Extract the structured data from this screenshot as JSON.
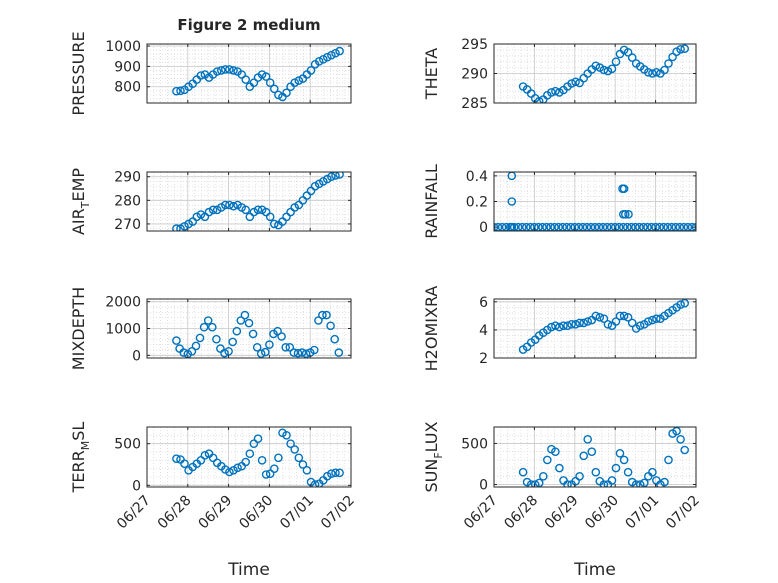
{
  "chart_data": [
    {
      "type": "scatter",
      "title": "Figure 2 medium",
      "ylabel": "PRESSURE",
      "ylim": [
        720,
        1010
      ],
      "yticks": [
        800,
        900,
        1000
      ],
      "xlim": [
        "06/27",
        "07/02"
      ],
      "xticks": [
        "06/27",
        "06/28",
        "06/29",
        "06/30",
        "07/01",
        "07/02"
      ],
      "xtick_labels_shown": false,
      "grid": true,
      "x": [
        0.72,
        0.82,
        0.92,
        1.02,
        1.12,
        1.22,
        1.32,
        1.42,
        1.52,
        1.62,
        1.72,
        1.82,
        1.92,
        2.02,
        2.12,
        2.22,
        2.32,
        2.42,
        2.52,
        2.62,
        2.72,
        2.82,
        2.92,
        3.02,
        3.12,
        3.22,
        3.32,
        3.42,
        3.52,
        3.62,
        3.72,
        3.82,
        3.92,
        4.02,
        4.12,
        4.22,
        4.32,
        4.42,
        4.52,
        4.62,
        4.72
      ],
      "y": [
        778,
        780,
        785,
        800,
        815,
        835,
        855,
        860,
        845,
        860,
        875,
        880,
        885,
        885,
        880,
        875,
        860,
        835,
        800,
        820,
        845,
        860,
        850,
        820,
        790,
        760,
        750,
        770,
        800,
        820,
        830,
        840,
        860,
        880,
        910,
        925,
        935,
        945,
        955,
        965,
        975
      ]
    },
    {
      "type": "scatter",
      "title": "",
      "ylabel": "THETA",
      "ylim": [
        285,
        295
      ],
      "yticks": [
        285,
        290,
        295
      ],
      "xlim": [
        "06/27",
        "07/02"
      ],
      "xticks": [
        "06/27",
        "06/28",
        "06/29",
        "06/30",
        "07/01",
        "07/02"
      ],
      "xtick_labels_shown": false,
      "grid": true,
      "x": [
        0.72,
        0.82,
        0.92,
        1.02,
        1.12,
        1.22,
        1.32,
        1.42,
        1.52,
        1.62,
        1.72,
        1.82,
        1.92,
        2.02,
        2.12,
        2.22,
        2.32,
        2.42,
        2.52,
        2.62,
        2.72,
        2.82,
        2.92,
        3.02,
        3.12,
        3.22,
        3.32,
        3.42,
        3.52,
        3.62,
        3.72,
        3.82,
        3.92,
        4.02,
        4.12,
        4.22,
        4.32,
        4.42,
        4.52,
        4.62,
        4.72
      ],
      "y": [
        287.8,
        287.3,
        286.6,
        285.8,
        285.3,
        285.6,
        286.3,
        286.8,
        287.0,
        286.8,
        287.2,
        287.8,
        288.3,
        288.6,
        288.4,
        289.2,
        290.0,
        290.7,
        291.3,
        291.0,
        290.6,
        290.4,
        290.8,
        292.0,
        293.3,
        294.0,
        293.6,
        292.7,
        291.7,
        291.2,
        290.7,
        290.2,
        290.0,
        290.2,
        290.0,
        290.6,
        291.7,
        292.8,
        293.7,
        294.1,
        294.2
      ]
    },
    {
      "type": "scatter",
      "title": "",
      "ylabel": "AIR_TEMP",
      "ylim": [
        267,
        292
      ],
      "yticks": [
        270,
        280,
        290
      ],
      "xlim": [
        "06/27",
        "07/02"
      ],
      "xticks": [
        "06/27",
        "06/28",
        "06/29",
        "06/30",
        "07/01",
        "07/02"
      ],
      "xtick_labels_shown": false,
      "grid": true,
      "x": [
        0.72,
        0.82,
        0.92,
        1.02,
        1.12,
        1.22,
        1.32,
        1.42,
        1.52,
        1.62,
        1.72,
        1.82,
        1.92,
        2.02,
        2.12,
        2.22,
        2.32,
        2.42,
        2.52,
        2.62,
        2.72,
        2.82,
        2.92,
        3.02,
        3.12,
        3.22,
        3.32,
        3.42,
        3.52,
        3.62,
        3.72,
        3.82,
        3.92,
        4.02,
        4.12,
        4.22,
        4.32,
        4.42,
        4.52,
        4.62,
        4.72
      ],
      "y": [
        268,
        268,
        269,
        270,
        271,
        273,
        274,
        273,
        275,
        276,
        276,
        277,
        278,
        278,
        277.5,
        278,
        277,
        276,
        273,
        275,
        276,
        276,
        275,
        273,
        270,
        269.5,
        271,
        273,
        275,
        277,
        278,
        280,
        282,
        284,
        286,
        287,
        288,
        289,
        290,
        290.5,
        291
      ]
    },
    {
      "type": "scatter",
      "title": "",
      "ylabel": "RAINFALL",
      "ylim": [
        -0.03,
        0.43
      ],
      "yticks": [
        0,
        0.2,
        0.4
      ],
      "xlim": [
        "06/27",
        "07/02"
      ],
      "xticks": [
        "06/27",
        "06/28",
        "06/29",
        "06/30",
        "07/01",
        "07/02"
      ],
      "xtick_labels_shown": false,
      "grid": true,
      "x": [
        0.0,
        0.1,
        0.2,
        0.3,
        0.4,
        0.5,
        0.6,
        0.7,
        0.8,
        0.9,
        1.0,
        1.1,
        1.2,
        1.3,
        1.4,
        1.5,
        1.6,
        1.7,
        1.8,
        1.9,
        2.0,
        2.1,
        2.2,
        2.3,
        2.4,
        2.5,
        2.6,
        2.7,
        2.8,
        2.9,
        3.0,
        3.1,
        3.2,
        3.3,
        3.4,
        3.5,
        3.6,
        3.7,
        3.8,
        3.9,
        4.0,
        4.1,
        4.2,
        4.3,
        4.4,
        4.5,
        4.6,
        4.7,
        4.8,
        4.9,
        5.0,
        0.44,
        0.44,
        0.44,
        3.18,
        3.22,
        3.25,
        3.2,
        3.33
      ],
      "y": [
        0,
        0,
        0,
        0,
        0,
        0,
        0,
        0,
        0,
        0,
        0,
        0,
        0,
        0,
        0,
        0,
        0,
        0,
        0,
        0,
        0,
        0,
        0,
        0,
        0,
        0,
        0,
        0,
        0,
        0,
        0,
        0,
        0,
        0,
        0,
        0,
        0,
        0,
        0,
        0,
        0,
        0,
        0,
        0,
        0,
        0,
        0,
        0,
        0,
        0,
        0,
        0.4,
        0.2,
        0,
        0.3,
        0.3,
        0.1,
        0.1,
        0.1
      ]
    },
    {
      "type": "scatter",
      "title": "",
      "ylabel": "MIXDEPTH",
      "ylim": [
        -100,
        2100
      ],
      "yticks": [
        0,
        1000,
        2000
      ],
      "xlim": [
        "06/27",
        "07/02"
      ],
      "xticks": [
        "06/27",
        "06/28",
        "06/29",
        "06/30",
        "07/01",
        "07/02"
      ],
      "xtick_labels_shown": false,
      "grid": true,
      "x": [
        0.72,
        0.8,
        0.9,
        1.0,
        1.1,
        1.2,
        1.3,
        1.4,
        1.5,
        1.6,
        1.7,
        1.8,
        1.9,
        2.0,
        2.1,
        2.2,
        2.3,
        2.4,
        2.5,
        2.6,
        2.7,
        2.8,
        2.9,
        3.0,
        3.1,
        3.2,
        3.3,
        3.4,
        3.5,
        3.6,
        3.7,
        3.8,
        3.9,
        4.0,
        4.1,
        4.2,
        4.3,
        4.4,
        4.5,
        4.6,
        4.7
      ],
      "y": [
        550,
        250,
        100,
        50,
        150,
        350,
        650,
        1050,
        1300,
        1050,
        600,
        250,
        80,
        150,
        500,
        900,
        1300,
        1500,
        1200,
        800,
        300,
        60,
        120,
        400,
        800,
        900,
        700,
        300,
        300,
        100,
        80,
        100,
        60,
        100,
        200,
        1300,
        1500,
        1500,
        1100,
        600,
        100
      ]
    },
    {
      "type": "scatter",
      "title": "",
      "ylabel": "H2OMIXRA",
      "ylim": [
        2,
        6.2
      ],
      "yticks": [
        2,
        4,
        6
      ],
      "xlim": [
        "06/27",
        "07/02"
      ],
      "xticks": [
        "06/27",
        "06/28",
        "06/29",
        "06/30",
        "07/01",
        "07/02"
      ],
      "xtick_labels_shown": false,
      "grid": true,
      "x": [
        0.72,
        0.82,
        0.92,
        1.02,
        1.12,
        1.22,
        1.32,
        1.42,
        1.52,
        1.62,
        1.72,
        1.82,
        1.92,
        2.02,
        2.12,
        2.22,
        2.32,
        2.42,
        2.52,
        2.62,
        2.72,
        2.82,
        2.92,
        3.02,
        3.12,
        3.22,
        3.32,
        3.42,
        3.52,
        3.62,
        3.72,
        3.82,
        3.92,
        4.02,
        4.12,
        4.22,
        4.32,
        4.42,
        4.52,
        4.62,
        4.72
      ],
      "y": [
        2.6,
        2.8,
        3.1,
        3.3,
        3.6,
        3.8,
        4.0,
        4.2,
        4.3,
        4.2,
        4.3,
        4.3,
        4.4,
        4.4,
        4.5,
        4.5,
        4.6,
        4.7,
        5.0,
        4.9,
        4.8,
        4.4,
        4.3,
        4.6,
        5.0,
        5.0,
        4.9,
        4.5,
        4.1,
        4.3,
        4.4,
        4.6,
        4.7,
        4.8,
        4.8,
        5.0,
        5.2,
        5.4,
        5.6,
        5.8,
        5.9
      ]
    },
    {
      "type": "scatter",
      "title": "",
      "ylabel": "TERR_MSL",
      "ylim": [
        -20,
        700
      ],
      "yticks": [
        0,
        500
      ],
      "xlim": [
        "06/27",
        "07/02"
      ],
      "xticks": [
        "06/27",
        "06/28",
        "06/29",
        "06/30",
        "07/01",
        "07/02"
      ],
      "xlabel": "Time",
      "grid": true,
      "x": [
        0.72,
        0.82,
        0.92,
        1.02,
        1.12,
        1.22,
        1.32,
        1.42,
        1.52,
        1.62,
        1.72,
        1.82,
        1.92,
        2.02,
        2.12,
        2.22,
        2.32,
        2.42,
        2.52,
        2.62,
        2.72,
        2.82,
        2.92,
        3.02,
        3.12,
        3.22,
        3.32,
        3.42,
        3.52,
        3.62,
        3.72,
        3.82,
        3.92,
        4.02,
        4.12,
        4.22,
        4.32,
        4.42,
        4.52,
        4.62,
        4.72
      ],
      "y": [
        320,
        310,
        260,
        180,
        220,
        260,
        300,
        360,
        380,
        330,
        270,
        230,
        190,
        160,
        180,
        210,
        230,
        280,
        380,
        500,
        560,
        300,
        130,
        140,
        200,
        330,
        630,
        600,
        500,
        430,
        330,
        250,
        180,
        40,
        10,
        20,
        60,
        110,
        140,
        150,
        150
      ]
    },
    {
      "type": "scatter",
      "title": "",
      "ylabel": "SUN_FLUX",
      "ylim": [
        -30,
        700
      ],
      "yticks": [
        0,
        500
      ],
      "xlim": [
        "06/27",
        "07/02"
      ],
      "xticks": [
        "06/27",
        "06/28",
        "06/29",
        "06/30",
        "07/01",
        "07/02"
      ],
      "xlabel": "Time",
      "grid": true,
      "x": [
        0.72,
        0.82,
        0.92,
        1.02,
        1.12,
        1.22,
        1.32,
        1.42,
        1.52,
        1.62,
        1.72,
        1.82,
        1.92,
        2.02,
        2.12,
        2.22,
        2.32,
        2.42,
        2.52,
        2.62,
        2.72,
        2.82,
        2.92,
        3.02,
        3.12,
        3.22,
        3.32,
        3.42,
        3.52,
        3.62,
        3.72,
        3.82,
        3.92,
        4.02,
        4.12,
        4.22,
        4.32,
        4.42,
        4.52,
        4.62,
        4.72
      ],
      "y": [
        150,
        30,
        0,
        0,
        20,
        100,
        300,
        430,
        400,
        200,
        50,
        0,
        0,
        40,
        100,
        350,
        550,
        400,
        150,
        40,
        0,
        0,
        50,
        200,
        380,
        300,
        150,
        30,
        0,
        0,
        20,
        100,
        150,
        50,
        0,
        30,
        300,
        620,
        650,
        550,
        420
      ]
    }
  ]
}
